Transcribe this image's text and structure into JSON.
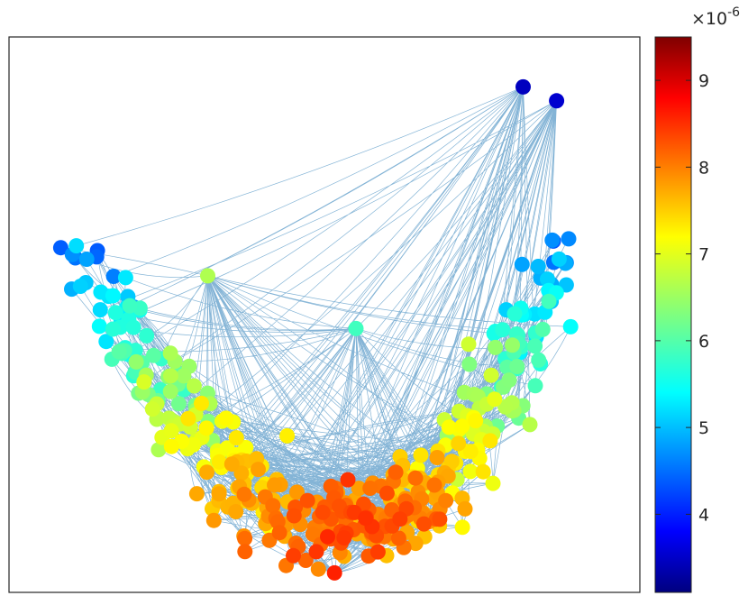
{
  "chart_data": {
    "type": "scatter",
    "title": "",
    "xlabel": "",
    "ylabel": "",
    "description_kind": "network graph embedding",
    "axes_visible": false,
    "grid": false,
    "edge_color": "#1f77b4",
    "colormap": "jet",
    "colorbar": {
      "placement": "right",
      "multiplier_label": "×10",
      "multiplier_exponent": "-6",
      "range": [
        3.1,
        9.5
      ],
      "ticks": [
        4,
        5,
        6,
        7,
        8,
        9
      ],
      "tick_labels": [
        "4",
        "5",
        "6",
        "7",
        "8",
        "9"
      ]
    },
    "xlim": [
      0,
      100
    ],
    "ylim": [
      0,
      100
    ],
    "hubs": [
      {
        "x": 31.5,
        "y": 57.0,
        "value": 6.6
      },
      {
        "x": 55.0,
        "y": 47.5,
        "value": 5.9
      },
      {
        "x": 51.6,
        "y": 3.5,
        "value": 8.5
      },
      {
        "x": 81.5,
        "y": 91.0,
        "value": 3.5
      },
      {
        "x": 86.8,
        "y": 88.5,
        "value": 3.6
      }
    ]
  }
}
